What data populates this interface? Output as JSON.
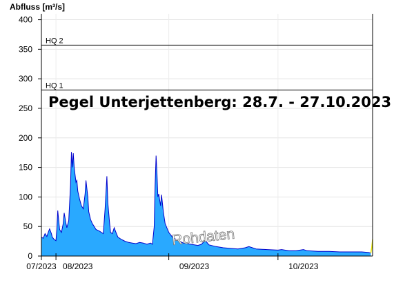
{
  "chart_data": {
    "type": "area",
    "title": "Pegel Unterjettenberg: 28.7. - 27.10.2023",
    "ylabel": "Abfluss [m³/s]",
    "xlabel": "",
    "ylim": [
      0,
      410
    ],
    "yticks": [
      0,
      50,
      100,
      150,
      200,
      250,
      300,
      350,
      400
    ],
    "xlim": [
      "2023-07-28",
      "2023-10-27"
    ],
    "month_ticks": [
      "2023-07-28",
      "2023-08-01",
      "2023-09-01",
      "2023-10-01"
    ],
    "month_labels": [
      {
        "date": "2023-07-28",
        "label": "07/2023"
      },
      {
        "date": "2023-08-07",
        "label": "08/2023"
      },
      {
        "date": "2023-09-08",
        "label": "09/2023"
      },
      {
        "date": "2023-10-08",
        "label": "10/2023"
      }
    ],
    "thresholds": [
      {
        "name": "HQ 1",
        "value": 281
      },
      {
        "name": "HQ 2",
        "value": 357
      }
    ],
    "watermark": "Rohdaten",
    "colors": {
      "fill": "#29a9ff",
      "line": "#0000cc",
      "threshold": "#000000",
      "raw_tail": "#e8e800"
    },
    "series": [
      {
        "values": [
          [
            "2023-07-28",
            32
          ],
          [
            "2023-07-28T12",
            30
          ],
          [
            "2023-07-29",
            38
          ],
          [
            "2023-07-29T12",
            33
          ],
          [
            "2023-07-30",
            42
          ],
          [
            "2023-07-30T06",
            46
          ],
          [
            "2023-07-30T18",
            38
          ],
          [
            "2023-07-31",
            32
          ],
          [
            "2023-07-31T12",
            28
          ],
          [
            "2023-08-01",
            26
          ],
          [
            "2023-08-01T06",
            45
          ],
          [
            "2023-08-01T12",
            77
          ],
          [
            "2023-08-01T18",
            60
          ],
          [
            "2023-08-02",
            45
          ],
          [
            "2023-08-02T12",
            40
          ],
          [
            "2023-08-03",
            55
          ],
          [
            "2023-08-03T06",
            73
          ],
          [
            "2023-08-03T18",
            55
          ],
          [
            "2023-08-04",
            48
          ],
          [
            "2023-08-04T12",
            60
          ],
          [
            "2023-08-05",
            120
          ],
          [
            "2023-08-05T06",
            176
          ],
          [
            "2023-08-05T12",
            150
          ],
          [
            "2023-08-05T18",
            174
          ],
          [
            "2023-08-06",
            150
          ],
          [
            "2023-08-06T12",
            125
          ],
          [
            "2023-08-06T18",
            128
          ],
          [
            "2023-08-07",
            110
          ],
          [
            "2023-08-07T12",
            96
          ],
          [
            "2023-08-08",
            85
          ],
          [
            "2023-08-08T12",
            80
          ],
          [
            "2023-08-09",
            105
          ],
          [
            "2023-08-09T06",
            128
          ],
          [
            "2023-08-09T18",
            100
          ],
          [
            "2023-08-10",
            75
          ],
          [
            "2023-08-10T12",
            62
          ],
          [
            "2023-08-11",
            55
          ],
          [
            "2023-08-11T12",
            50
          ],
          [
            "2023-08-12",
            45
          ],
          [
            "2023-08-13",
            42
          ],
          [
            "2023-08-13T12",
            40
          ],
          [
            "2023-08-14",
            38
          ],
          [
            "2023-08-14T12",
            80
          ],
          [
            "2023-08-15",
            135
          ],
          [
            "2023-08-15T06",
            90
          ],
          [
            "2023-08-15T18",
            55
          ],
          [
            "2023-08-16",
            40
          ],
          [
            "2023-08-16T12",
            38
          ],
          [
            "2023-08-17",
            48
          ],
          [
            "2023-08-17T12",
            40
          ],
          [
            "2023-08-18",
            32
          ],
          [
            "2023-08-19",
            28
          ],
          [
            "2023-08-20",
            25
          ],
          [
            "2023-08-21",
            23
          ],
          [
            "2023-08-22",
            22
          ],
          [
            "2023-08-23",
            21
          ],
          [
            "2023-08-24",
            23
          ],
          [
            "2023-08-25",
            22
          ],
          [
            "2023-08-26",
            20
          ],
          [
            "2023-08-27",
            22
          ],
          [
            "2023-08-27T12",
            20
          ],
          [
            "2023-08-28",
            50
          ],
          [
            "2023-08-28T06",
            120
          ],
          [
            "2023-08-28T12",
            170
          ],
          [
            "2023-08-28T18",
            140
          ],
          [
            "2023-08-29",
            100
          ],
          [
            "2023-08-29T06",
            105
          ],
          [
            "2023-08-29T18",
            85
          ],
          [
            "2023-08-30",
            104
          ],
          [
            "2023-08-30T12",
            75
          ],
          [
            "2023-08-31",
            55
          ],
          [
            "2023-09-01",
            40
          ],
          [
            "2023-09-02",
            32
          ],
          [
            "2023-09-03",
            28
          ],
          [
            "2023-09-04",
            25
          ],
          [
            "2023-09-05",
            22
          ],
          [
            "2023-09-07",
            20
          ],
          [
            "2023-09-09",
            18
          ],
          [
            "2023-09-10",
            20
          ],
          [
            "2023-09-11",
            27
          ],
          [
            "2023-09-11T12",
            23
          ],
          [
            "2023-09-12",
            19
          ],
          [
            "2023-09-14",
            16
          ],
          [
            "2023-09-16",
            14
          ],
          [
            "2023-09-18",
            13
          ],
          [
            "2023-09-20",
            12
          ],
          [
            "2023-09-22",
            14
          ],
          [
            "2023-09-23",
            16
          ],
          [
            "2023-09-25",
            12
          ],
          [
            "2023-09-28",
            11
          ],
          [
            "2023-10-01",
            10
          ],
          [
            "2023-10-02",
            11
          ],
          [
            "2023-10-04",
            9
          ],
          [
            "2023-10-06",
            9
          ],
          [
            "2023-10-08",
            11
          ],
          [
            "2023-10-09",
            9
          ],
          [
            "2023-10-12",
            8
          ],
          [
            "2023-10-15",
            8
          ],
          [
            "2023-10-18",
            7
          ],
          [
            "2023-10-21",
            7
          ],
          [
            "2023-10-24",
            7
          ],
          [
            "2023-10-26",
            6
          ],
          [
            "2023-10-26T12",
            5
          ]
        ],
        "raw_tail": [
          [
            "2023-10-26T12",
            5
          ],
          [
            "2023-10-26T18",
            14
          ],
          [
            "2023-10-27",
            28
          ]
        ]
      }
    ]
  }
}
